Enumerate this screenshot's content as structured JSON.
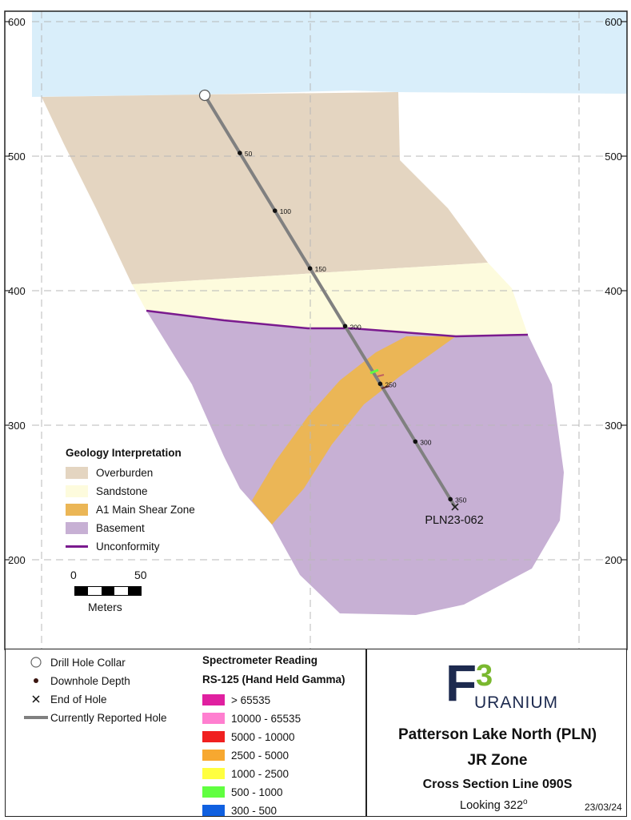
{
  "elevation_axis": {
    "labels": [
      "600",
      "500",
      "400",
      "300",
      "200"
    ],
    "values": [
      600,
      500,
      400,
      300,
      200
    ]
  },
  "drill_hole": {
    "name": "PLN23-062",
    "depth_labels": [
      "50",
      "100",
      "150",
      "200",
      "250",
      "300",
      "350"
    ]
  },
  "legend": {
    "title": "Geology Interpretation",
    "items": [
      {
        "label": "Overburden",
        "color": "#e4d5c1",
        "kind": "fill"
      },
      {
        "label": "Sandstone",
        "color": "#fdfbdd",
        "kind": "fill"
      },
      {
        "label": "A1 Main Shear Zone",
        "color": "#ebb656",
        "kind": "fill"
      },
      {
        "label": "Basement",
        "color": "#c7b0d4",
        "kind": "fill"
      },
      {
        "label": "Unconformity",
        "color": "#7a1a8e",
        "kind": "line"
      }
    ]
  },
  "scale_bar": {
    "zero": "0",
    "max": "50",
    "unit": "Meters"
  },
  "symbols": {
    "collar": "Drill Hole Collar",
    "depth": "Downhole Depth",
    "end": "End of Hole",
    "current": "Currently Reported Hole"
  },
  "spectrometer": {
    "title1": "Spectrometer Reading",
    "title2": "RS-125 (Hand Held Gamma)",
    "ranges": [
      {
        "label": "> 65535",
        "color": "#e020a0"
      },
      {
        "label": "10000 - 65535",
        "color": "#ff7fd0"
      },
      {
        "label": "5000 - 10000",
        "color": "#f02020"
      },
      {
        "label": "2500 - 5000",
        "color": "#f7a830"
      },
      {
        "label": "1000 - 2500",
        "color": "#ffff40"
      },
      {
        "label": "500 - 1000",
        "color": "#60ff40"
      },
      {
        "label": "300 - 500",
        "color": "#1060e0"
      }
    ]
  },
  "logo": {
    "big_letter": "F",
    "superscript": "3",
    "rest": "URANIUM",
    "color_dark": "#1d2a4f",
    "color_green": "#7ab82f"
  },
  "title": {
    "line1": "Patterson Lake North (PLN)",
    "line2": "JR Zone",
    "line3": "Cross Section Line 090S",
    "looking_prefix": "Looking 322",
    "looking_sup": "o",
    "date": "23/03/24"
  }
}
